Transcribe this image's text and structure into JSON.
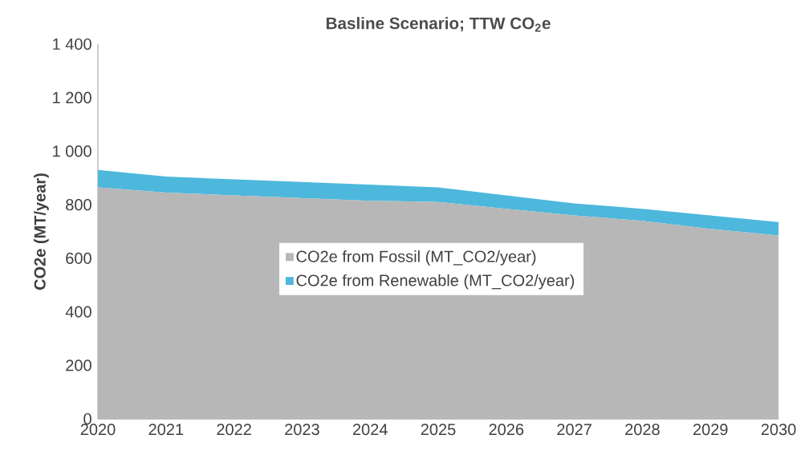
{
  "chart_data": {
    "type": "area",
    "title": "Basline Scenario; TTW CO$_{2}$e",
    "ylabel": "CO2e (MT/year)",
    "x": [
      2020,
      2021,
      2022,
      2023,
      2024,
      2025,
      2026,
      2027,
      2028,
      2029,
      2030
    ],
    "stacked": true,
    "legend": "center",
    "xlim": [
      2020,
      2030
    ],
    "xticks": [
      2020,
      2021,
      2022,
      2023,
      2024,
      2025,
      2026,
      2027,
      2028,
      2029,
      2030
    ],
    "ylim": [
      0,
      1400
    ],
    "yticks": [
      0,
      200,
      400,
      600,
      800,
      {
        "value": 1000,
        "label": "1 000"
      },
      {
        "value": 1200,
        "label": "1 200"
      },
      {
        "value": 1400,
        "label": "1 400"
      }
    ],
    "series": [
      {
        "name": "CO2e from Fossil (MT_CO2/year)",
        "color": "#b7b7b7",
        "values": [
          865,
          845,
          835,
          825,
          815,
          810,
          785,
          760,
          740,
          710,
          685
        ]
      },
      {
        "name": "CO2e from Renewable (MT_CO2/year)",
        "color": "#4db8dc",
        "values": [
          65,
          60,
          60,
          60,
          60,
          55,
          50,
          45,
          45,
          50,
          50
        ]
      }
    ]
  }
}
